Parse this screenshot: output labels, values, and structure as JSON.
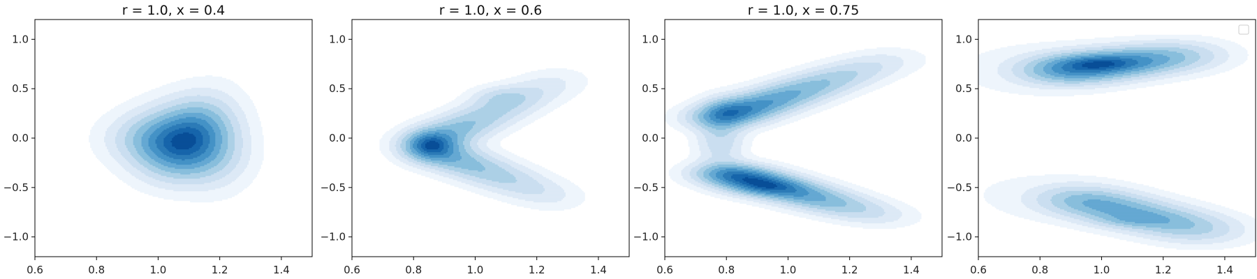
{
  "chart_data": [
    {
      "type": "kde_contour",
      "title": "r = 1.0, x = 0.4",
      "xlim": [
        0.6,
        1.5
      ],
      "ylim": [
        -1.2,
        1.2
      ],
      "xticks": [
        0.6,
        0.8,
        1.0,
        1.2,
        1.4
      ],
      "xtick_labels": [
        "0.6",
        "0.8",
        "1.0",
        "1.2",
        "1.4"
      ],
      "yticks": [
        -1.0,
        -0.5,
        0.0,
        0.5,
        1.0
      ],
      "ytick_labels": [
        "−1.0",
        "−0.5",
        "0.0",
        "0.5",
        "1.0"
      ],
      "grid": false,
      "legend": null,
      "density_shape": "single triangular blob",
      "peak": [
        1.05,
        -0.03
      ],
      "extent": {
        "x": [
          0.73,
          1.42
        ],
        "y": [
          -0.75,
          0.73
        ]
      }
    },
    {
      "type": "kde_contour",
      "title": "r = 1.0, x = 0.6",
      "xlim": [
        0.6,
        1.5
      ],
      "ylim": [
        -1.2,
        1.2
      ],
      "xticks": [
        0.6,
        0.8,
        1.0,
        1.2,
        1.4
      ],
      "xtick_labels": [
        "0.6",
        "0.8",
        "1.0",
        "1.2",
        "1.4"
      ],
      "yticks": [
        -1.0,
        -0.5,
        0.0,
        0.5,
        1.0
      ],
      "ytick_labels": [
        "−1.0",
        "−0.5",
        "0.0",
        "0.5",
        "1.0"
      ],
      "grid": false,
      "legend": null,
      "density_shape": "chevron / boomerang opening right",
      "vertex": [
        0.83,
        -0.05
      ],
      "arm_ends": [
        [
          1.3,
          0.68
        ],
        [
          1.3,
          -0.68
        ]
      ],
      "peak": [
        0.86,
        -0.08
      ]
    },
    {
      "type": "kde_contour",
      "title": "r = 1.0, x = 0.75",
      "xlim": [
        0.6,
        1.5
      ],
      "ylim": [
        -1.2,
        1.2
      ],
      "xticks": [
        0.6,
        0.8,
        1.0,
        1.2,
        1.4
      ],
      "xtick_labels": [
        "0.6",
        "0.8",
        "1.0",
        "1.2",
        "1.4"
      ],
      "yticks": [
        -1.0,
        -0.5,
        0.0,
        0.5,
        1.0
      ],
      "ytick_labels": [
        "−1.0",
        "−0.5",
        "0.0",
        "0.5",
        "1.0"
      ],
      "grid": false,
      "legend": null,
      "density_shape": "C-shape opening right",
      "vertex": [
        0.72,
        0.0
      ],
      "arm_ends": [
        [
          1.38,
          0.85
        ],
        [
          1.35,
          -0.82
        ]
      ],
      "peaks": [
        [
          0.93,
          -0.5
        ],
        [
          0.8,
          0.3
        ]
      ]
    },
    {
      "type": "kde_contour",
      "title": "",
      "xlim": [
        0.6,
        1.5
      ],
      "ylim": [
        -1.2,
        1.2
      ],
      "xticks": [
        0.6,
        0.8,
        1.0,
        1.2,
        1.4
      ],
      "xtick_labels": [
        "0.6",
        "0.8",
        "1.0",
        "1.2",
        "1.4"
      ],
      "yticks": [
        -1.0,
        -0.5,
        0.0,
        0.5,
        1.0
      ],
      "ytick_labels": [
        "−1.0",
        "−0.5",
        "0.0",
        "0.5",
        "1.0"
      ],
      "grid": false,
      "legend": "top-right (empty)",
      "density_shape": "two separated horizontal bands",
      "peaks": [
        [
          1.0,
          0.76
        ],
        [
          1.1,
          -0.83
        ]
      ]
    }
  ],
  "colors": {
    "levels": [
      "#eef5fc",
      "#dde9f6",
      "#cadef0",
      "#acd0e6",
      "#88bedc",
      "#65a8d3",
      "#4592c6",
      "#2c7bb7",
      "#1765ab",
      "#084e98"
    ],
    "axes": "#000000",
    "text": "#222222"
  }
}
